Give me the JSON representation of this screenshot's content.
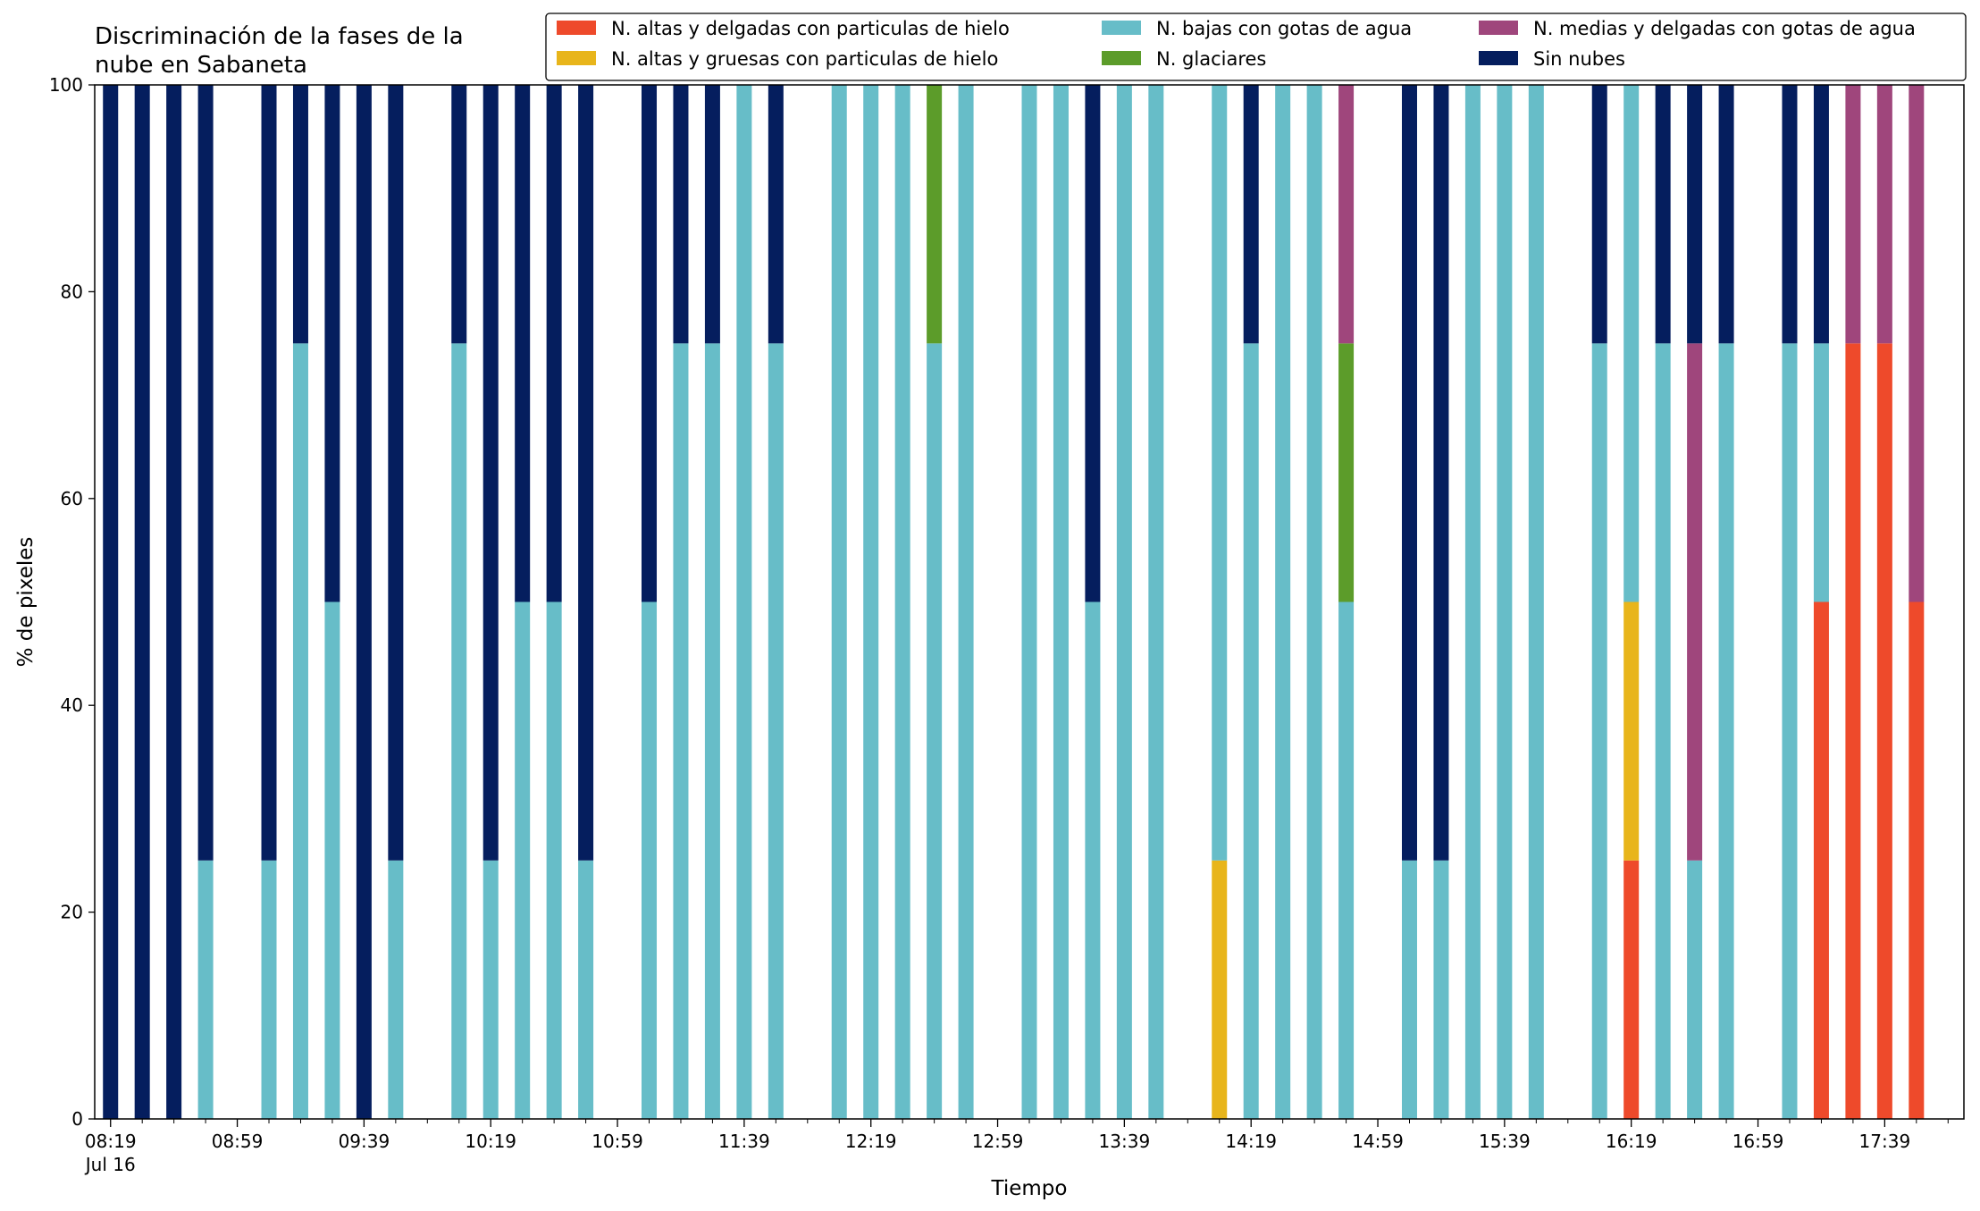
{
  "chart_data": {
    "type": "bar",
    "stacked": true,
    "title_lines": [
      "Discriminación de la fases de la",
      "nube en Sabaneta"
    ],
    "xlabel": "Tiempo",
    "ylabel": "% de pixeles",
    "ylim": [
      0,
      100
    ],
    "yticks": [
      "0",
      "20",
      "40",
      "60",
      "80",
      "100"
    ],
    "xlim": [
      "08:14",
      "18:04"
    ],
    "xticks": [
      {
        "time": "08:19",
        "label": "08:19",
        "sublabel": "Jul 16"
      },
      {
        "time": "08:59",
        "label": "08:59"
      },
      {
        "time": "09:39",
        "label": "09:39"
      },
      {
        "time": "10:19",
        "label": "10:19"
      },
      {
        "time": "10:59",
        "label": "10:59"
      },
      {
        "time": "11:39",
        "label": "11:39"
      },
      {
        "time": "12:19",
        "label": "12:19"
      },
      {
        "time": "12:59",
        "label": "12:59"
      },
      {
        "time": "13:39",
        "label": "13:39"
      },
      {
        "time": "14:19",
        "label": "14:19"
      },
      {
        "time": "14:59",
        "label": "14:59"
      },
      {
        "time": "15:39",
        "label": "15:39"
      },
      {
        "time": "16:19",
        "label": "16:19"
      },
      {
        "time": "16:59",
        "label": "16:59"
      },
      {
        "time": "17:39",
        "label": "17:39"
      }
    ],
    "grid": false,
    "legend_position": "top-right",
    "legend_columns": 3,
    "series": [
      {
        "key": "alt_delg_hielo",
        "name": "N. altas y delgadas con particulas de hielo",
        "color": "#ee4a2b"
      },
      {
        "key": "alt_grue_hielo",
        "name": "N. altas y gruesas con particulas de hielo",
        "color": "#e8b51b"
      },
      {
        "key": "bajas_agua",
        "name": "N. bajas con gotas de agua",
        "color": "#67bdc8"
      },
      {
        "key": "glaciares",
        "name": "N. glaciares",
        "color": "#5c9c2a"
      },
      {
        "key": "medias_agua",
        "name": "N. medias y delgadas con gotas de agua",
        "color": "#9f467c"
      },
      {
        "key": "sin_nubes",
        "name": "Sin nubes",
        "color": "#051e5e"
      }
    ],
    "bars": [
      {
        "time": "08:19",
        "values": [
          0,
          0,
          0,
          0,
          0,
          100
        ]
      },
      {
        "time": "08:29",
        "values": [
          0,
          0,
          0,
          0,
          0,
          100
        ]
      },
      {
        "time": "08:39",
        "values": [
          0,
          0,
          0,
          0,
          0,
          100
        ]
      },
      {
        "time": "08:49",
        "values": [
          0,
          0,
          25,
          0,
          0,
          75
        ]
      },
      {
        "time": "09:09",
        "values": [
          0,
          0,
          25,
          0,
          0,
          75
        ]
      },
      {
        "time": "09:19",
        "values": [
          0,
          0,
          75,
          0,
          0,
          25
        ]
      },
      {
        "time": "09:29",
        "values": [
          0,
          0,
          50,
          0,
          0,
          50
        ]
      },
      {
        "time": "09:39",
        "values": [
          0,
          0,
          0,
          0,
          0,
          100
        ]
      },
      {
        "time": "09:49",
        "values": [
          0,
          0,
          25,
          0,
          0,
          75
        ]
      },
      {
        "time": "10:09",
        "values": [
          0,
          0,
          75,
          0,
          0,
          25
        ]
      },
      {
        "time": "10:19",
        "values": [
          0,
          0,
          25,
          0,
          0,
          75
        ]
      },
      {
        "time": "10:29",
        "values": [
          0,
          0,
          50,
          0,
          0,
          50
        ]
      },
      {
        "time": "10:39",
        "values": [
          0,
          0,
          50,
          0,
          0,
          50
        ]
      },
      {
        "time": "10:49",
        "values": [
          0,
          0,
          25,
          0,
          0,
          75
        ]
      },
      {
        "time": "11:09",
        "values": [
          0,
          0,
          50,
          0,
          0,
          50
        ]
      },
      {
        "time": "11:19",
        "values": [
          0,
          0,
          75,
          0,
          0,
          25
        ]
      },
      {
        "time": "11:29",
        "values": [
          0,
          0,
          75,
          0,
          0,
          25
        ]
      },
      {
        "time": "11:39",
        "values": [
          0,
          0,
          100,
          0,
          0,
          0
        ]
      },
      {
        "time": "11:49",
        "values": [
          0,
          0,
          75,
          0,
          0,
          25
        ]
      },
      {
        "time": "12:09",
        "values": [
          0,
          0,
          100,
          0,
          0,
          0
        ]
      },
      {
        "time": "12:19",
        "values": [
          0,
          0,
          100,
          0,
          0,
          0
        ]
      },
      {
        "time": "12:29",
        "values": [
          0,
          0,
          100,
          0,
          0,
          0
        ]
      },
      {
        "time": "12:39",
        "values": [
          0,
          0,
          75,
          25,
          0,
          0
        ]
      },
      {
        "time": "12:49",
        "values": [
          0,
          0,
          100,
          0,
          0,
          0
        ]
      },
      {
        "time": "13:09",
        "values": [
          0,
          0,
          100,
          0,
          0,
          0
        ]
      },
      {
        "time": "13:19",
        "values": [
          0,
          0,
          100,
          0,
          0,
          0
        ]
      },
      {
        "time": "13:29",
        "values": [
          0,
          0,
          50,
          0,
          0,
          50
        ]
      },
      {
        "time": "13:39",
        "values": [
          0,
          0,
          100,
          0,
          0,
          0
        ]
      },
      {
        "time": "13:49",
        "values": [
          0,
          0,
          100,
          0,
          0,
          0
        ]
      },
      {
        "time": "14:09",
        "values": [
          0,
          25,
          75,
          0,
          0,
          0
        ]
      },
      {
        "time": "14:19",
        "values": [
          0,
          0,
          75,
          0,
          0,
          25
        ]
      },
      {
        "time": "14:29",
        "values": [
          0,
          0,
          100,
          0,
          0,
          0
        ]
      },
      {
        "time": "14:39",
        "values": [
          0,
          0,
          100,
          0,
          0,
          0
        ]
      },
      {
        "time": "14:49",
        "values": [
          0,
          0,
          50,
          25,
          25,
          0
        ]
      },
      {
        "time": "15:09",
        "values": [
          0,
          0,
          25,
          0,
          0,
          75
        ]
      },
      {
        "time": "15:19",
        "values": [
          0,
          0,
          25,
          0,
          0,
          75
        ]
      },
      {
        "time": "15:29",
        "values": [
          0,
          0,
          100,
          0,
          0,
          0
        ]
      },
      {
        "time": "15:39",
        "values": [
          0,
          0,
          100,
          0,
          0,
          0
        ]
      },
      {
        "time": "15:49",
        "values": [
          0,
          0,
          100,
          0,
          0,
          0
        ]
      },
      {
        "time": "16:09",
        "values": [
          0,
          0,
          75,
          0,
          0,
          25
        ]
      },
      {
        "time": "16:19",
        "values": [
          25,
          25,
          50,
          0,
          0,
          0
        ]
      },
      {
        "time": "16:29",
        "values": [
          0,
          0,
          75,
          0,
          0,
          25
        ]
      },
      {
        "time": "16:39",
        "values": [
          0,
          0,
          25,
          0,
          50,
          25
        ]
      },
      {
        "time": "16:49",
        "values": [
          0,
          0,
          75,
          0,
          0,
          25
        ]
      },
      {
        "time": "17:09",
        "values": [
          0,
          0,
          75,
          0,
          0,
          25
        ]
      },
      {
        "time": "17:19",
        "values": [
          50,
          0,
          25,
          0,
          0,
          25
        ]
      },
      {
        "time": "17:29",
        "values": [
          75,
          0,
          0,
          0,
          25,
          0
        ]
      },
      {
        "time": "17:39",
        "values": [
          75,
          0,
          0,
          0,
          25,
          0
        ]
      },
      {
        "time": "17:49",
        "values": [
          50,
          0,
          0,
          0,
          50,
          0
        ]
      }
    ]
  }
}
